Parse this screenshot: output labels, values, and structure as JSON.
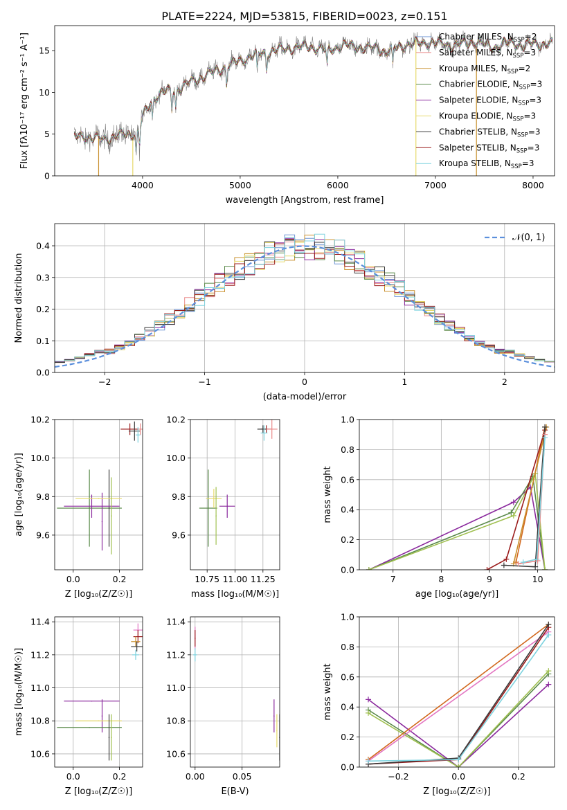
{
  "figure_title": "PLATE=2224, MJD=53815, FIBERID=0023, z=0.151",
  "palette": [
    "#6e95d6",
    "#ea8a8a",
    "#c9902e",
    "#5a8a4a",
    "#8b2a9e",
    "#e6d96a",
    "#3a3a3a",
    "#9b1c1c",
    "#7ed3df"
  ],
  "palette_extra": {
    "olive": "#a0c050",
    "model_orange": "#d2691e",
    "pink": "#e377c2",
    "normal_curve": "#5b8fdc"
  },
  "chart_data": [
    {
      "id": "spectrum",
      "type": "line",
      "title": "PLATE=2224, MJD=53815, FIBERID=0023, z=0.151",
      "xlabel": "wavelength [Angstrom, rest frame]",
      "ylabel": "Flux [fλ10⁻¹⁷ erg cm⁻² s⁻¹ A⁻¹]",
      "xlim": [
        3100,
        8220
      ],
      "ylim": [
        0,
        18
      ],
      "xticks": [
        4000,
        5000,
        6000,
        7000,
        8000
      ],
      "yticks": [
        0,
        5,
        10,
        15
      ],
      "grid": false,
      "legend_position": "top-right",
      "continuum": {
        "x": [
          3300,
          3400,
          3500,
          3600,
          3700,
          3800,
          3900,
          3950,
          4000,
          4100,
          4200,
          4300,
          4400,
          4500,
          4600,
          4700,
          4800,
          4900,
          5000,
          5100,
          5200,
          5300,
          5400,
          5500,
          5600,
          5700,
          5800,
          5900,
          6000,
          6100,
          6200,
          6300,
          6400,
          6500,
          6600,
          6700,
          6800,
          6900,
          7000,
          7100,
          7200,
          7300,
          7400,
          7500,
          7600,
          7700,
          7800,
          7900,
          8000,
          8100,
          8200
        ],
        "y": [
          4.6,
          4.8,
          4.5,
          4.4,
          4.7,
          4.9,
          5.1,
          5.0,
          7.0,
          9.2,
          10.0,
          10.2,
          10.6,
          11.3,
          11.8,
          12.3,
          12.8,
          13.3,
          13.8,
          14.3,
          14.6,
          14.9,
          15.1,
          15.3,
          15.4,
          15.5,
          15.3,
          15.0,
          15.5,
          15.6,
          15.5,
          15.2,
          15.4,
          14.8,
          15.4,
          15.7,
          15.8,
          16.0,
          15.9,
          15.8,
          15.6,
          15.9,
          16.1,
          15.7,
          15.4,
          15.8,
          16.0,
          15.5,
          15.9,
          15.8,
          15.7
        ]
      },
      "series": [
        {
          "name": "Chabrier MILES, N",
          "sub": "SSP",
          "tail": "=2",
          "color": "#6e95d6",
          "drop": null
        },
        {
          "name": "Salpeter MILES, N",
          "sub": "SSP",
          "tail": "=3",
          "color": "#ea8a8a",
          "drop": null
        },
        {
          "name": "Kroupa MILES, N",
          "sub": "SSP",
          "tail": "=2",
          "color": "#c9902e",
          "drop": [
            3550,
            7420
          ]
        },
        {
          "name": "Chabrier ELODIE, N",
          "sub": "SSP",
          "tail": "=3",
          "color": "#5a8a4a",
          "drop": null
        },
        {
          "name": "Salpeter ELODIE, N",
          "sub": "SSP",
          "tail": "=3",
          "color": "#8b2a9e",
          "drop": null
        },
        {
          "name": "Kroupa ELODIE, N",
          "sub": "SSP",
          "tail": "=3",
          "color": "#e6d96a",
          "drop": [
            3900,
            6800
          ]
        },
        {
          "name": "Chabrier STELIB, N",
          "sub": "SSP",
          "tail": "=3",
          "color": "#3a3a3a",
          "drop": null
        },
        {
          "name": "Salpeter STELIB, N",
          "sub": "SSP",
          "tail": "=3",
          "color": "#9b1c1c",
          "drop": null
        },
        {
          "name": "Kroupa STELIB, N",
          "sub": "SSP",
          "tail": "=3",
          "color": "#7ed3df",
          "drop": null
        }
      ],
      "data_color": "#808080"
    },
    {
      "id": "residuals",
      "type": "histogram",
      "xlabel": "(data-model)/error",
      "ylabel": "Normed distribution",
      "xlim": [
        -2.5,
        2.5
      ],
      "ylim": [
        0,
        0.47
      ],
      "xticks": [
        -2,
        -1,
        0,
        1,
        2
      ],
      "yticks": [
        0.0,
        0.1,
        0.2,
        0.3,
        0.4
      ],
      "grid": true,
      "legend_position": "top-right",
      "legend": [
        {
          "name": "𝒩(0, 1)",
          "color": "#5b8fdc",
          "style": "dashed"
        }
      ],
      "bin_width": 0.1
    },
    {
      "id": "age_vs_Z",
      "type": "errorbar",
      "xlabel": "Z [log₁₀(Z/Z☉)]",
      "ylabel": "age  [log₁₀(age/yr)]",
      "xlim": [
        -0.08,
        0.3
      ],
      "ylim": [
        9.42,
        10.2
      ],
      "xticks": [
        0.0,
        0.2
      ],
      "yticks": [
        9.6,
        9.8,
        10.0,
        10.2
      ],
      "grid": true,
      "points": [
        {
          "color": "#5a8a4a",
          "x": 0.07,
          "xerr": 0.14,
          "y": 9.74,
          "yerr": 0.2
        },
        {
          "color": "#3a3a3a",
          "x": 0.155,
          "xerr": 0.0,
          "y": 9.74,
          "yerr": 0.2
        },
        {
          "color": "#8b2a9e",
          "x": 0.08,
          "xerr": 0.12,
          "y": 9.75,
          "yerr": 0.06
        },
        {
          "color": "#8b2a9e",
          "x": 0.125,
          "xerr": 0.0,
          "y": 9.67,
          "yerr": 0.15
        },
        {
          "color": "#e6d96a",
          "x": 0.11,
          "xerr": 0.1,
          "y": 9.79,
          "yerr": 0.0
        },
        {
          "color": "#a0c050",
          "x": 0.165,
          "xerr": 0.0,
          "y": 9.7,
          "yerr": 0.2
        },
        {
          "color": "#9b1c1c",
          "x": 0.245,
          "xerr": 0.04,
          "y": 10.15,
          "yerr": 0.03
        },
        {
          "color": "#3a3a3a",
          "x": 0.265,
          "xerr": 0.025,
          "y": 10.14,
          "yerr": 0.05
        },
        {
          "color": "#ea8a8a",
          "x": 0.29,
          "xerr": 0.01,
          "y": 10.15,
          "yerr": 0.03
        },
        {
          "color": "#7ed3df",
          "x": 0.28,
          "xerr": 0.01,
          "y": 10.12,
          "yerr": 0.04
        }
      ]
    },
    {
      "id": "age_vs_mass",
      "type": "errorbar",
      "xlabel": "mass [log₁₀(M/M☉)]",
      "ylabel": "",
      "xlim": [
        10.6,
        11.4
      ],
      "ylim": [
        9.42,
        10.2
      ],
      "xticks": [
        10.75,
        11.0,
        11.25
      ],
      "yticks": [
        9.6,
        9.8,
        10.0,
        10.2
      ],
      "grid": true,
      "points": [
        {
          "color": "#5a8a4a",
          "x": 10.76,
          "xerr": 0.08,
          "y": 9.74,
          "yerr": 0.2
        },
        {
          "color": "#e6d96a",
          "x": 10.81,
          "xerr": 0.07,
          "y": 9.79,
          "yerr": 0.05
        },
        {
          "color": "#a0c050",
          "x": 10.83,
          "xerr": 0.0,
          "y": 9.7,
          "yerr": 0.15
        },
        {
          "color": "#8b2a9e",
          "x": 10.93,
          "xerr": 0.07,
          "y": 9.75,
          "yerr": 0.06
        },
        {
          "color": "#9b1c1c",
          "x": 11.28,
          "xerr": 0.05,
          "y": 10.15,
          "yerr": 0.02
        },
        {
          "color": "#3a3a3a",
          "x": 11.25,
          "xerr": 0.05,
          "y": 10.15,
          "yerr": 0.02
        },
        {
          "color": "#ea8a8a",
          "x": 11.33,
          "xerr": 0.05,
          "y": 10.15,
          "yerr": 0.05
        },
        {
          "color": "#7ed3df",
          "x": 11.26,
          "xerr": 0.03,
          "y": 10.13,
          "yerr": 0.04
        }
      ]
    },
    {
      "id": "massweight_vs_age",
      "type": "line",
      "xlabel": "age  [log₁₀(age/yr)]",
      "ylabel": "mass weight",
      "xlim": [
        6.3,
        10.35
      ],
      "ylim": [
        0,
        1.0
      ],
      "xticks": [
        7,
        8,
        9,
        10
      ],
      "yticks": [
        0.0,
        0.2,
        0.4,
        0.6,
        0.8,
        1.0
      ],
      "grid": true,
      "series": [
        {
          "color": "#8b2a9e",
          "x": [
            6.5,
            9.5,
            9.85,
            10.15
          ],
          "y": [
            0.0,
            0.45,
            0.55,
            0.0
          ]
        },
        {
          "color": "#5a8a4a",
          "x": [
            6.5,
            9.45,
            9.9,
            10.15
          ],
          "y": [
            0.0,
            0.38,
            0.62,
            0.0
          ]
        },
        {
          "color": "#a0c050",
          "x": [
            6.5,
            9.5,
            9.95,
            10.15
          ],
          "y": [
            0.0,
            0.36,
            0.64,
            0.0
          ]
        },
        {
          "color": "#d2691e",
          "x": [
            9.55,
            10.15
          ],
          "y": [
            0.05,
            0.95
          ]
        },
        {
          "color": "#c9902e",
          "x": [
            9.5,
            10.18
          ],
          "y": [
            0.04,
            0.95
          ]
        },
        {
          "color": "#9b1c1c",
          "x": [
            8.95,
            9.35,
            10.15
          ],
          "y": [
            0.0,
            0.07,
            0.93
          ]
        },
        {
          "color": "#3a3a3a",
          "x": [
            9.3,
            9.95,
            10.15
          ],
          "y": [
            0.03,
            0.02,
            0.95
          ]
        },
        {
          "color": "#ea8a8a",
          "x": [
            9.6,
            10.0,
            10.15
          ],
          "y": [
            0.04,
            0.06,
            0.9
          ]
        },
        {
          "color": "#7ed3df",
          "x": [
            9.7,
            9.98,
            10.15
          ],
          "y": [
            0.05,
            0.07,
            0.88
          ]
        }
      ]
    },
    {
      "id": "mass_vs_Z",
      "type": "errorbar",
      "xlabel": "Z [log₁₀(Z/Z☉)]",
      "ylabel": "mass [log₁₀(M/M☉)]",
      "xlim": [
        -0.08,
        0.3
      ],
      "ylim": [
        10.52,
        11.43
      ],
      "xticks": [
        0.0,
        0.2
      ],
      "yticks": [
        10.6,
        10.8,
        11.0,
        11.2,
        11.4
      ],
      "grid": true,
      "points": [
        {
          "color": "#8b2a9e",
          "x": 0.08,
          "xerr": 0.12,
          "y": 10.92,
          "yerr": 0.0
        },
        {
          "color": "#8b2a9e",
          "x": 0.125,
          "xerr": 0.0,
          "y": 10.83,
          "yerr": 0.1
        },
        {
          "color": "#e6d96a",
          "x": 0.11,
          "xerr": 0.1,
          "y": 10.8,
          "yerr": 0.0
        },
        {
          "color": "#5a8a4a",
          "x": 0.07,
          "xerr": 0.14,
          "y": 10.76,
          "yerr": 0.0
        },
        {
          "color": "#3a3a3a",
          "x": 0.155,
          "xerr": 0.0,
          "y": 10.7,
          "yerr": 0.14
        },
        {
          "color": "#a0c050",
          "x": 0.165,
          "xerr": 0.0,
          "y": 10.7,
          "yerr": 0.14
        },
        {
          "color": "#e377c2",
          "x": 0.28,
          "xerr": 0.02,
          "y": 11.35,
          "yerr": 0.04
        },
        {
          "color": "#9b1c1c",
          "x": 0.28,
          "xerr": 0.02,
          "y": 11.31,
          "yerr": 0.04
        },
        {
          "color": "#c9902e",
          "x": 0.27,
          "xerr": 0.02,
          "y": 11.28,
          "yerr": 0.03
        },
        {
          "color": "#3a3a3a",
          "x": 0.275,
          "xerr": 0.025,
          "y": 11.25,
          "yerr": 0.03
        },
        {
          "color": "#7ed3df",
          "x": 0.27,
          "xerr": 0.015,
          "y": 11.2,
          "yerr": 0.03
        }
      ]
    },
    {
      "id": "mass_vs_EBV",
      "type": "errorbar",
      "xlabel": "E(B-V)",
      "ylabel": "",
      "xlim": [
        -0.005,
        0.09
      ],
      "ylim": [
        10.52,
        11.43
      ],
      "xticks": [
        0.0,
        0.05
      ],
      "yticks": [
        10.6,
        10.8,
        11.0,
        11.2,
        11.4
      ],
      "grid": true,
      "points": [
        {
          "color": "#e377c2",
          "x": 0.0,
          "xerr": 0.0,
          "y": 11.3,
          "yerr": 0.07
        },
        {
          "color": "#9b1c1c",
          "x": 0.0,
          "xerr": 0.0,
          "y": 11.3,
          "yerr": 0.05
        },
        {
          "color": "#7ed3df",
          "x": 0.0,
          "xerr": 0.002,
          "y": 11.2,
          "yerr": 0.04
        },
        {
          "color": "#8b2a9e",
          "x": 0.084,
          "xerr": 0.0,
          "y": 10.83,
          "yerr": 0.1
        },
        {
          "color": "#e6d96a",
          "x": 0.087,
          "xerr": 0.0,
          "y": 10.74,
          "yerr": 0.1
        },
        {
          "color": "#3a3a3a",
          "x": 0.09,
          "xerr": 0.0,
          "y": 10.7,
          "yerr": 0.14
        }
      ]
    },
    {
      "id": "massweight_vs_Z",
      "type": "line",
      "xlabel": "Z [log₁₀(Z/Z☉)]",
      "ylabel": "mass weight",
      "xlim": [
        -0.33,
        0.32
      ],
      "ylim": [
        0,
        1.0
      ],
      "xticks": [
        -0.2,
        0.0,
        0.2
      ],
      "yticks": [
        0.0,
        0.2,
        0.4,
        0.6,
        0.8,
        1.0
      ],
      "grid": true,
      "series": [
        {
          "color": "#8b2a9e",
          "x": [
            -0.3,
            0.0,
            0.3
          ],
          "y": [
            0.45,
            0.0,
            0.55
          ]
        },
        {
          "color": "#5a8a4a",
          "x": [
            -0.3,
            0.0,
            0.3
          ],
          "y": [
            0.38,
            0.0,
            0.62
          ]
        },
        {
          "color": "#a0c050",
          "x": [
            -0.3,
            0.0,
            0.3
          ],
          "y": [
            0.36,
            0.0,
            0.64
          ]
        },
        {
          "color": "#d2691e",
          "x": [
            -0.3,
            0.3
          ],
          "y": [
            0.05,
            0.95
          ]
        },
        {
          "color": "#e377c2",
          "x": [
            -0.3,
            0.3
          ],
          "y": [
            0.04,
            0.9
          ]
        },
        {
          "color": "#9b1c1c",
          "x": [
            -0.3,
            0.0,
            0.3
          ],
          "y": [
            0.02,
            0.05,
            0.93
          ]
        },
        {
          "color": "#3a3a3a",
          "x": [
            -0.3,
            0.0,
            0.3
          ],
          "y": [
            0.02,
            0.06,
            0.95
          ]
        },
        {
          "color": "#7ed3df",
          "x": [
            -0.3,
            0.0,
            0.3
          ],
          "y": [
            0.04,
            0.05,
            0.88
          ]
        }
      ]
    }
  ]
}
